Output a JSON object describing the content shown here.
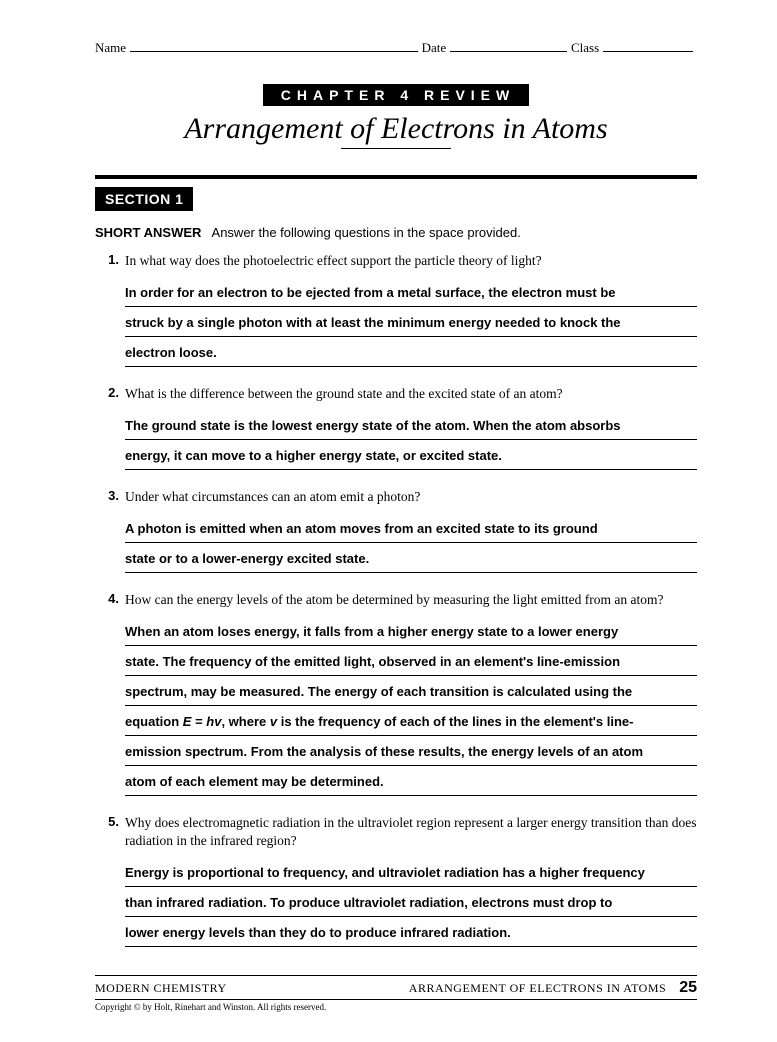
{
  "header": {
    "name_label": "Name",
    "date_label": "Date",
    "class_label": "Class"
  },
  "chapter_bar": "CHAPTER 4 REVIEW",
  "main_title": "Arrangement of Electrons in Atoms",
  "section_bar": "SECTION 1",
  "instructions_bold": "SHORT ANSWER",
  "instructions_rest": "Answer the following questions in the space provided.",
  "questions": [
    {
      "num": "1.",
      "text": "In what way does the photoelectric effect support the particle theory of light?",
      "answers": [
        "In order for an electron to be ejected from a metal surface, the electron must be",
        "struck by a single photon with at least the minimum energy needed to knock the",
        "electron loose."
      ]
    },
    {
      "num": "2.",
      "text": "What is the difference between the ground state and the excited state of an atom?",
      "answers": [
        "The ground state is the lowest energy state of the atom. When the atom absorbs",
        "energy, it can move to a higher energy state, or excited state."
      ]
    },
    {
      "num": "3.",
      "text": "Under what circumstances can an atom emit a photon?",
      "answers": [
        "A photon is emitted when an atom moves from an excited state to its ground",
        "state or to a lower-energy excited state."
      ]
    },
    {
      "num": "4.",
      "text": "How can the energy levels of the atom be determined by measuring the light emitted from an atom?",
      "answers": [
        "When an atom loses energy, it falls from a higher energy state to a lower energy",
        "state. The frequency of the emitted light, observed in an element's line-emission",
        "spectrum, may be measured. The energy of each transition is calculated using the",
        "equation E = hv, where v is the frequency of each of the lines in the element's line-",
        "emission spectrum. From the analysis of these results, the energy levels of an atom",
        "atom of each element may be determined."
      ]
    },
    {
      "num": "5.",
      "text": "Why does electromagnetic radiation in the ultraviolet region represent a larger energy transition than does radiation in the infrared region?",
      "answers": [
        "Energy is proportional to frequency, and ultraviolet radiation has a higher frequency",
        "than infrared radiation. To produce ultraviolet radiation, electrons must drop to",
        "lower energy levels than they do to produce infrared radiation."
      ]
    }
  ],
  "footer": {
    "left": "MODERN CHEMISTRY",
    "right": "ARRANGEMENT OF ELECTRONS IN ATOMS",
    "page": "25",
    "copyright": "Copyright © by Holt, Rinehart and Winston. All rights reserved."
  }
}
